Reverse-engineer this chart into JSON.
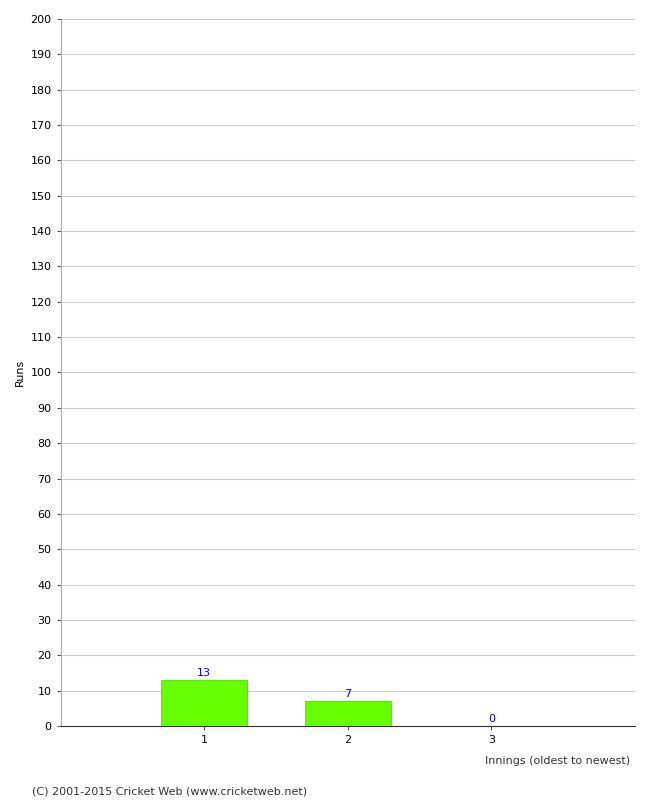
{
  "categories": [
    "1",
    "2",
    "3"
  ],
  "values": [
    13,
    7,
    0
  ],
  "bar_color": "#66ff00",
  "bar_edge_color": "#44cc00",
  "label_color": "#0000cc",
  "xlabel": "Innings (oldest to newest)",
  "ylabel": "Runs",
  "ylim": [
    0,
    200
  ],
  "yticks": [
    0,
    10,
    20,
    30,
    40,
    50,
    60,
    70,
    80,
    90,
    100,
    110,
    120,
    130,
    140,
    150,
    160,
    170,
    180,
    190,
    200
  ],
  "footer": "(C) 2001-2015 Cricket Web (www.cricketweb.net)",
  "background_color": "#ffffff",
  "grid_color": "#cccccc",
  "bar_width": 0.6,
  "label_fontsize": 8,
  "axis_fontsize": 8,
  "ylabel_fontsize": 8,
  "footer_fontsize": 8,
  "tick_fontsize": 8
}
